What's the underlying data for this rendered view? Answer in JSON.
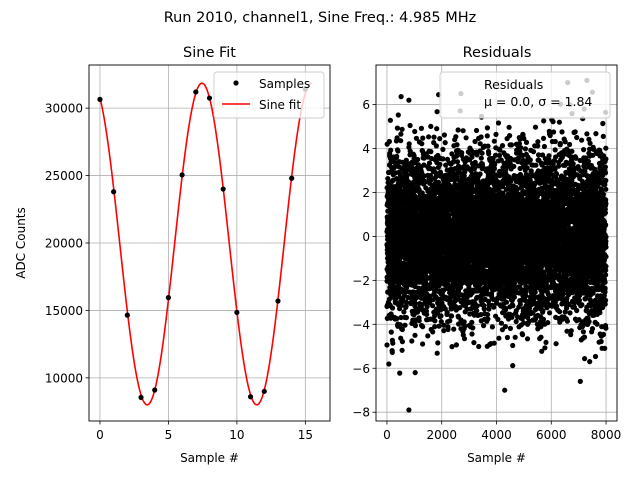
{
  "figure": {
    "suptitle": "Run 2010, channel1, Sine Freq.: 4.985 MHz"
  },
  "chart_data": [
    {
      "type": "line",
      "title": "Sine Fit",
      "xlabel": "Sample #",
      "ylabel": "ADC Counts",
      "xlim": [
        -0.8,
        16.8
      ],
      "ylim": [
        6800,
        33200
      ],
      "xticks": [
        0,
        5,
        10,
        15
      ],
      "yticks": [
        10000,
        15000,
        20000,
        25000,
        30000
      ],
      "grid": true,
      "legend_position": "upper right",
      "series": [
        {
          "name": "Samples",
          "kind": "scatter",
          "color": "#000000",
          "x": [
            0,
            1,
            2,
            3,
            4,
            5,
            6,
            7,
            8,
            9,
            10,
            11,
            12,
            13,
            14,
            15
          ],
          "y": [
            30650,
            23800,
            14650,
            8550,
            9100,
            15950,
            25050,
            31200,
            30750,
            24000,
            14850,
            8600,
            9000,
            15700,
            24800,
            31400
          ]
        },
        {
          "name": "Sine fit",
          "kind": "line",
          "color": "#ff0000",
          "model": {
            "offset": 19925,
            "amplitude": 11925,
            "period": 8.0,
            "phase_peak_x": 7.45,
            "x_from": 0,
            "x_to": 15.5
          }
        }
      ]
    },
    {
      "type": "scatter",
      "title": "Residuals",
      "xlabel": "Sample #",
      "ylabel": "",
      "xlim": [
        -400,
        8400
      ],
      "ylim": [
        -8.4,
        7.8
      ],
      "xticks": [
        0,
        2000,
        4000,
        6000,
        8000
      ],
      "yticks": [
        -8,
        -6,
        -4,
        -2,
        0,
        2,
        4,
        6
      ],
      "grid": true,
      "legend_position": "upper right",
      "series": [
        {
          "name": "Residuals",
          "legend_line2": "μ = 0.0, σ = 1.84",
          "color": "#000000",
          "n": 8000,
          "mean": 0.0,
          "std": 1.84,
          "x_range": [
            0,
            8000
          ],
          "notable_points": [
            [
              800,
              -7.9
            ],
            [
              4300,
              -7.0
            ],
            [
              7300,
              7.1
            ],
            [
              6600,
              7.0
            ],
            [
              800,
              6.2
            ],
            [
              2700,
              6.5
            ]
          ]
        }
      ]
    }
  ]
}
